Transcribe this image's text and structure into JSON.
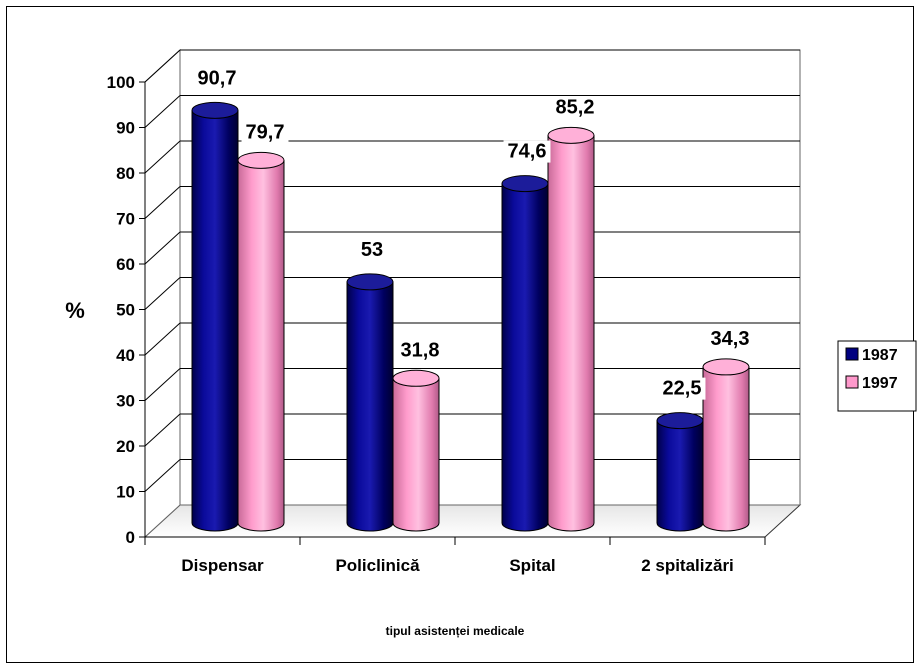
{
  "chart_data": {
    "type": "bar",
    "title": "",
    "xlabel": "tipul asistenței medicale",
    "ylabel": "%",
    "categories": [
      "Dispensar",
      "Policlinică",
      "Spital",
      "2 spitalizări"
    ],
    "series": [
      {
        "name": "1987",
        "values": [
          90.7,
          53,
          74.6,
          22.5
        ],
        "labels": [
          "90,7",
          "53",
          "74,6",
          "22,5"
        ],
        "color": "#000080"
      },
      {
        "name": "1997",
        "values": [
          79.7,
          31.8,
          85.2,
          34.3
        ],
        "labels": [
          "79,7",
          "31,8",
          "85,2",
          "34,3"
        ],
        "color": "#ff99cc"
      }
    ],
    "ylim": [
      0,
      100
    ],
    "yticks": [
      "0",
      "10",
      "20",
      "30",
      "40",
      "50",
      "60",
      "70",
      "80",
      "90",
      "100"
    ],
    "grid": true,
    "legend_position": "right"
  }
}
